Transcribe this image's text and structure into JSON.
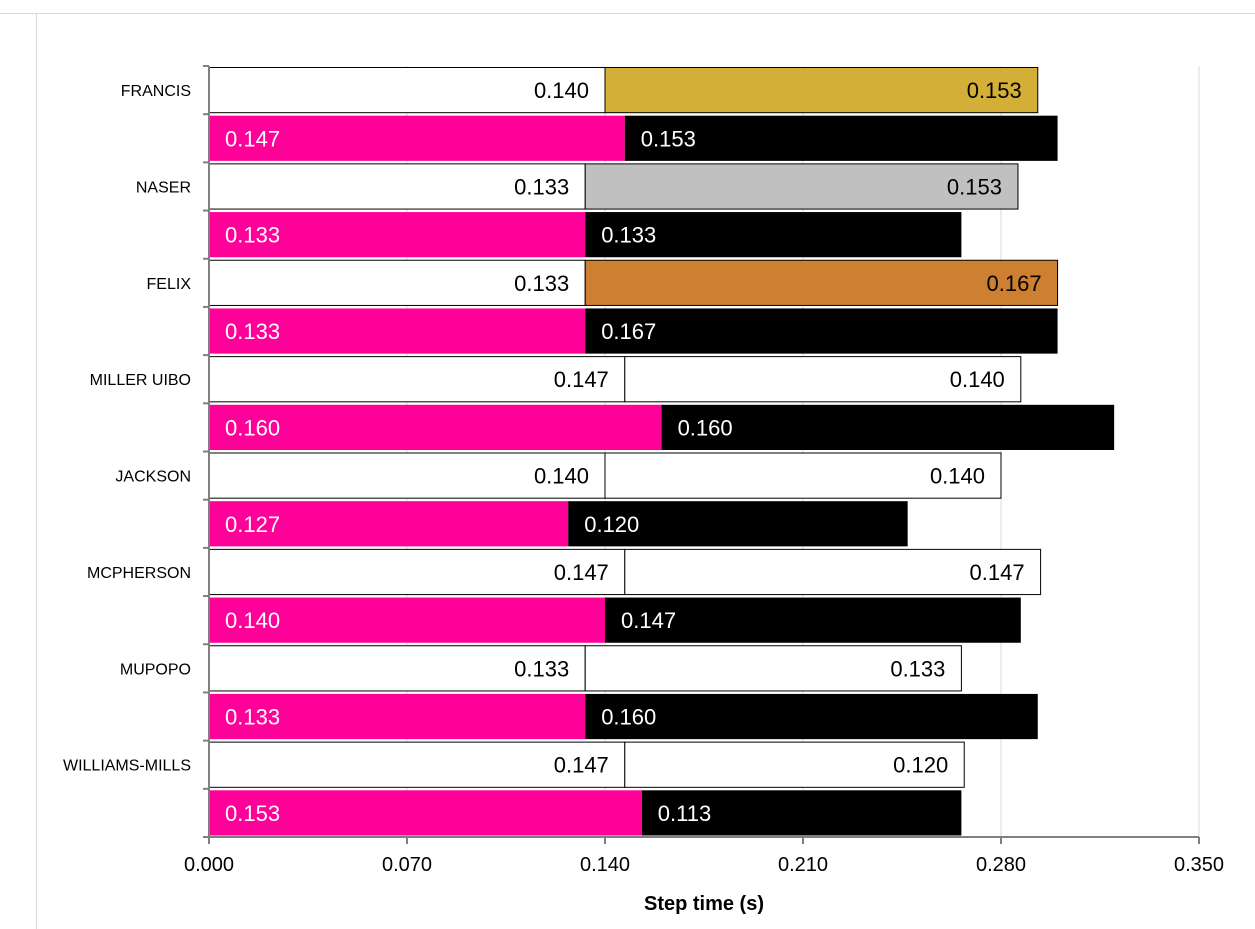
{
  "chart_data": {
    "type": "bar",
    "orientation": "horizontal",
    "stacked": true,
    "xlabel": "Step time (s)",
    "xlim": [
      0,
      0.35
    ],
    "xticks": [
      "0.000",
      "0.070",
      "0.140",
      "0.210",
      "0.280",
      "0.350"
    ],
    "grid": true,
    "categories": [
      "FRANCIS",
      "NASER",
      "FELIX",
      "MILLER UIBO",
      "JACKSON",
      "MCPHERSON",
      "MUPOPO",
      "WILLIAMS-MILLS"
    ],
    "rows": [
      {
        "athlete": "FRANCIS",
        "segments": [
          {
            "value": 0.14,
            "label": "0.140",
            "color": "#ffffff",
            "text_color": "#000000",
            "align": "right"
          },
          {
            "value": 0.153,
            "label": "0.153",
            "color": "#d4af37",
            "text_color": "#000000",
            "align": "right"
          }
        ]
      },
      {
        "athlete": "",
        "segments": [
          {
            "value": 0.147,
            "label": "0.147",
            "color": "#ff0099",
            "text_color": "#ffffff",
            "align": "left"
          },
          {
            "value": 0.153,
            "label": "0.153",
            "color": "#000000",
            "text_color": "#ffffff",
            "align": "left"
          }
        ]
      },
      {
        "athlete": "NASER",
        "segments": [
          {
            "value": 0.133,
            "label": "0.133",
            "color": "#ffffff",
            "text_color": "#000000",
            "align": "right"
          },
          {
            "value": 0.153,
            "label": "0.153",
            "color": "#c0c0c0",
            "text_color": "#000000",
            "align": "right"
          }
        ]
      },
      {
        "athlete": "",
        "segments": [
          {
            "value": 0.133,
            "label": "0.133",
            "color": "#ff0099",
            "text_color": "#ffffff",
            "align": "left"
          },
          {
            "value": 0.133,
            "label": "0.133",
            "color": "#000000",
            "text_color": "#ffffff",
            "align": "left"
          }
        ]
      },
      {
        "athlete": "FELIX",
        "segments": [
          {
            "value": 0.133,
            "label": "0.133",
            "color": "#ffffff",
            "text_color": "#000000",
            "align": "right"
          },
          {
            "value": 0.167,
            "label": "0.167",
            "color": "#cd7f32",
            "text_color": "#000000",
            "align": "right"
          }
        ]
      },
      {
        "athlete": "",
        "segments": [
          {
            "value": 0.133,
            "label": "0.133",
            "color": "#ff0099",
            "text_color": "#ffffff",
            "align": "left"
          },
          {
            "value": 0.167,
            "label": "0.167",
            "color": "#000000",
            "text_color": "#ffffff",
            "align": "left"
          }
        ]
      },
      {
        "athlete": "MILLER UIBO",
        "segments": [
          {
            "value": 0.147,
            "label": "0.147",
            "color": "#ffffff",
            "text_color": "#000000",
            "align": "right"
          },
          {
            "value": 0.14,
            "label": "0.140",
            "color": "#ffffff",
            "text_color": "#000000",
            "align": "right"
          }
        ]
      },
      {
        "athlete": "",
        "segments": [
          {
            "value": 0.16,
            "label": "0.160",
            "color": "#ff0099",
            "text_color": "#ffffff",
            "align": "left"
          },
          {
            "value": 0.16,
            "label": "0.160",
            "color": "#000000",
            "text_color": "#ffffff",
            "align": "left"
          }
        ]
      },
      {
        "athlete": "JACKSON",
        "segments": [
          {
            "value": 0.14,
            "label": "0.140",
            "color": "#ffffff",
            "text_color": "#000000",
            "align": "right"
          },
          {
            "value": 0.14,
            "label": "0.140",
            "color": "#ffffff",
            "text_color": "#000000",
            "align": "right"
          }
        ]
      },
      {
        "athlete": "",
        "segments": [
          {
            "value": 0.127,
            "label": "0.127",
            "color": "#ff0099",
            "text_color": "#ffffff",
            "align": "left"
          },
          {
            "value": 0.12,
            "label": "0.120",
            "color": "#000000",
            "text_color": "#ffffff",
            "align": "left"
          }
        ]
      },
      {
        "athlete": "MCPHERSON",
        "segments": [
          {
            "value": 0.147,
            "label": "0.147",
            "color": "#ffffff",
            "text_color": "#000000",
            "align": "right"
          },
          {
            "value": 0.147,
            "label": "0.147",
            "color": "#ffffff",
            "text_color": "#000000",
            "align": "right"
          }
        ]
      },
      {
        "athlete": "",
        "segments": [
          {
            "value": 0.14,
            "label": "0.140",
            "color": "#ff0099",
            "text_color": "#ffffff",
            "align": "left"
          },
          {
            "value": 0.147,
            "label": "0.147",
            "color": "#000000",
            "text_color": "#ffffff",
            "align": "left"
          }
        ]
      },
      {
        "athlete": "MUPOPO",
        "segments": [
          {
            "value": 0.133,
            "label": "0.133",
            "color": "#ffffff",
            "text_color": "#000000",
            "align": "right"
          },
          {
            "value": 0.133,
            "label": "0.133",
            "color": "#ffffff",
            "text_color": "#000000",
            "align": "right"
          }
        ]
      },
      {
        "athlete": "",
        "segments": [
          {
            "value": 0.133,
            "label": "0.133",
            "color": "#ff0099",
            "text_color": "#ffffff",
            "align": "left"
          },
          {
            "value": 0.16,
            "label": "0.160",
            "color": "#000000",
            "text_color": "#ffffff",
            "align": "left"
          }
        ]
      },
      {
        "athlete": "WILLIAMS-MILLS",
        "segments": [
          {
            "value": 0.147,
            "label": "0.147",
            "color": "#ffffff",
            "text_color": "#000000",
            "align": "right"
          },
          {
            "value": 0.12,
            "label": "0.120",
            "color": "#ffffff",
            "text_color": "#000000",
            "align": "right"
          }
        ]
      },
      {
        "athlete": "",
        "segments": [
          {
            "value": 0.153,
            "label": "0.153",
            "color": "#ff0099",
            "text_color": "#ffffff",
            "align": "left"
          },
          {
            "value": 0.113,
            "label": "0.113",
            "color": "#000000",
            "text_color": "#ffffff",
            "align": "left"
          }
        ]
      }
    ]
  }
}
